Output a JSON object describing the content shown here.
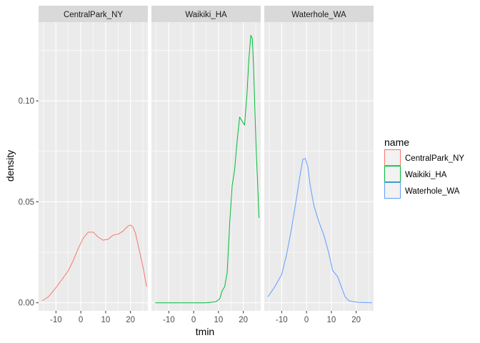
{
  "chart_data": {
    "type": "line",
    "subtype": "density",
    "faceted_by": "name",
    "xlabel": "tmin",
    "ylabel": "density",
    "xlim": [
      -17,
      27
    ],
    "ylim": [
      -0.004,
      0.139
    ],
    "x_ticks": [
      -10,
      0,
      10,
      20
    ],
    "x_tick_labels": [
      "-10",
      "0",
      "10",
      "20"
    ],
    "y_ticks": [
      0.0,
      0.05,
      0.1
    ],
    "y_tick_labels": [
      "0.00",
      "0.05",
      "0.10"
    ],
    "grid": true,
    "legend": {
      "title": "name",
      "placement": "right",
      "entries": [
        "CentralPark_NY",
        "Waikiki_HA",
        "Waterhole_WA"
      ]
    },
    "panels": [
      {
        "strip": "CentralPark_NY",
        "color": "#F8766D",
        "x": [
          -15.5,
          -13,
          -10,
          -7,
          -5,
          -3,
          -1,
          1,
          3,
          5,
          7,
          9,
          11,
          13,
          15,
          17,
          19,
          20,
          21,
          22,
          23,
          25,
          26.5
        ],
        "y": [
          0.001,
          0.003,
          0.0075,
          0.0125,
          0.016,
          0.021,
          0.027,
          0.032,
          0.035,
          0.035,
          0.0325,
          0.031,
          0.0315,
          0.0335,
          0.034,
          0.0355,
          0.038,
          0.0385,
          0.0375,
          0.0345,
          0.029,
          0.018,
          0.008
        ]
      },
      {
        "strip": "Waikiki_HA",
        "color": "#00BA38",
        "x": [
          -15.5,
          -10,
          -5,
          0,
          5,
          9,
          10.5,
          11.5,
          12.5,
          13.5,
          14.5,
          15.5,
          16.5,
          17.5,
          18.5,
          19.5,
          20.5,
          21.5,
          22.2,
          23,
          23.6,
          24.1,
          24.6,
          25.2,
          25.8,
          26.3
        ],
        "y": [
          0,
          0,
          0,
          0,
          0,
          0.0005,
          0.002,
          0.006,
          0.008,
          0.015,
          0.039,
          0.058,
          0.066,
          0.08,
          0.092,
          0.09,
          0.088,
          0.104,
          0.12,
          0.1325,
          0.131,
          0.118,
          0.098,
          0.075,
          0.058,
          0.042
        ]
      },
      {
        "strip": "Waterhole_WA",
        "color": "#619CFF",
        "x": [
          -15.5,
          -13,
          -10,
          -8,
          -6,
          -4,
          -2.5,
          -1.5,
          -0.5,
          0.5,
          1.5,
          3,
          5,
          7,
          9,
          10.5,
          12.5,
          14,
          15.5,
          17,
          19,
          21,
          23,
          26.5
        ],
        "y": [
          0.003,
          0.0075,
          0.014,
          0.024,
          0.037,
          0.052,
          0.064,
          0.071,
          0.0715,
          0.0675,
          0.058,
          0.048,
          0.04,
          0.0335,
          0.0245,
          0.016,
          0.013,
          0.008,
          0.003,
          0.001,
          0.0005,
          0.0002,
          0.0001,
          0
        ]
      }
    ]
  }
}
